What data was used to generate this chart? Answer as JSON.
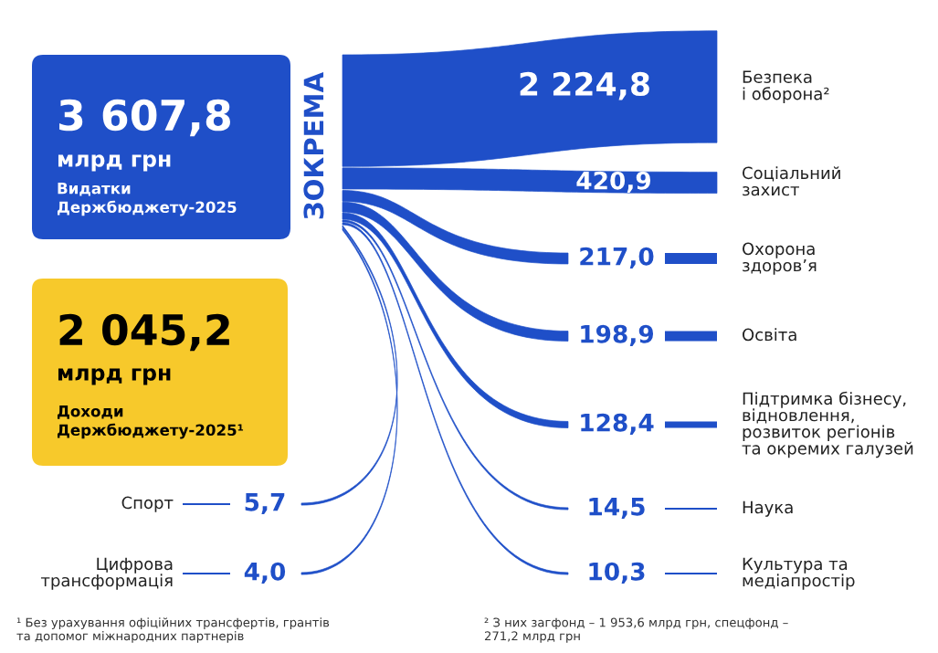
{
  "chart_data": {
    "type": "other",
    "categories": [
      "Безпека\nі оборона²",
      "Соціальний\nзахист",
      "Охорона\nздоров’я",
      "Освіта",
      "Підтримка бізнесу,\nвідновлення,\nрозвиток регіонів\nта окремих галузей",
      "Наука",
      "Культура та\nмедіапростір",
      "Спорт",
      "Цифрова\nтрансформація"
    ],
    "values": [
      2224.8,
      420.9,
      217.0,
      198.9,
      128.4,
      14.5,
      10.3,
      5.7,
      4.0
    ],
    "value_labels": [
      "2 224,8",
      "420,9",
      "217,0",
      "198,9",
      "128,4",
      "14,5",
      "10,3",
      "5,7",
      "4,0"
    ],
    "colors": [
      "#1f4fc8",
      "#1f4fc8",
      "#1f4fc8",
      "#1f4fc8",
      "#1f4fc8",
      "#1f4fc8",
      "#1f4fc8",
      "#1f4fc8",
      "#1f4fc8"
    ],
    "annotations": [
      "3 607,8",
      "млрд грн",
      "Видатки\nДержбюджету-2025",
      "2 045,2",
      "млрд грн",
      "Доходи\nДержбюджету-2025¹",
      "ЗОКРЕМА",
      "¹ Без урахування офіційних трансфертів, грантів\nта допомог міжнародних партнерів",
      "² З них загфонд – 1 953,6 млрд грн, спецфонд –\n271,2 млрд грн"
    ]
  }
}
